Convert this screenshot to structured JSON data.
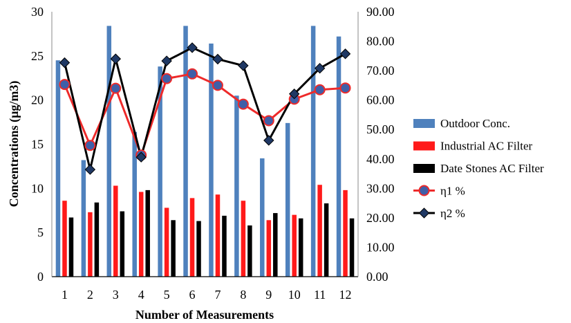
{
  "chart_data": {
    "type": "bar",
    "categories": [
      "1",
      "2",
      "3",
      "4",
      "5",
      "6",
      "7",
      "8",
      "9",
      "10",
      "11",
      "12"
    ],
    "xlabel": "Number of Measurements",
    "ylabel": "Concentrations (µg/m3)",
    "ylim": [
      0,
      30
    ],
    "y2lim": [
      0,
      90
    ],
    "yticks": [
      "0",
      "5",
      "10",
      "15",
      "20",
      "25",
      "30"
    ],
    "y2ticks": [
      "0.00",
      "10.00",
      "20.00",
      "30.00",
      "40.00",
      "50.00",
      "60.00",
      "70.00",
      "80.00",
      "90.00"
    ],
    "grid": false,
    "legend_position": "right",
    "series": [
      {
        "name": "Outdoor Conc.",
        "type": "bar",
        "axis": "left",
        "color": "#4f81bd",
        "values": [
          24.5,
          13.2,
          28.4,
          16.4,
          23.8,
          28.4,
          26.4,
          20.5,
          13.4,
          17.4,
          28.4,
          27.2
        ]
      },
      {
        "name": "Industrial AC Filter",
        "type": "bar",
        "axis": "left",
        "color": "#ff1a1a",
        "values": [
          8.6,
          7.3,
          10.3,
          9.6,
          7.8,
          8.9,
          9.3,
          8.6,
          6.4,
          7.0,
          10.4,
          9.8
        ]
      },
      {
        "name": "Date Stones AC Filter",
        "type": "bar",
        "axis": "left",
        "color": "#000000",
        "values": [
          6.7,
          8.4,
          7.4,
          9.8,
          6.4,
          6.3,
          6.9,
          5.8,
          7.2,
          6.6,
          8.3,
          6.6
        ]
      },
      {
        "name": "η1  %",
        "type": "line",
        "axis": "right",
        "color": "#ee2a2a",
        "marker": "circle",
        "values": [
          65.3,
          44.6,
          64.0,
          41.3,
          67.3,
          68.9,
          65.0,
          58.6,
          53.0,
          60.3,
          63.5,
          64.1
        ]
      },
      {
        "name": "η2  %",
        "type": "line",
        "axis": "right",
        "color": "#000000",
        "marker": "diamond",
        "values": [
          72.7,
          36.4,
          74.0,
          40.6,
          73.3,
          77.8,
          73.9,
          71.7,
          46.3,
          62.1,
          70.8,
          75.7
        ]
      }
    ]
  }
}
